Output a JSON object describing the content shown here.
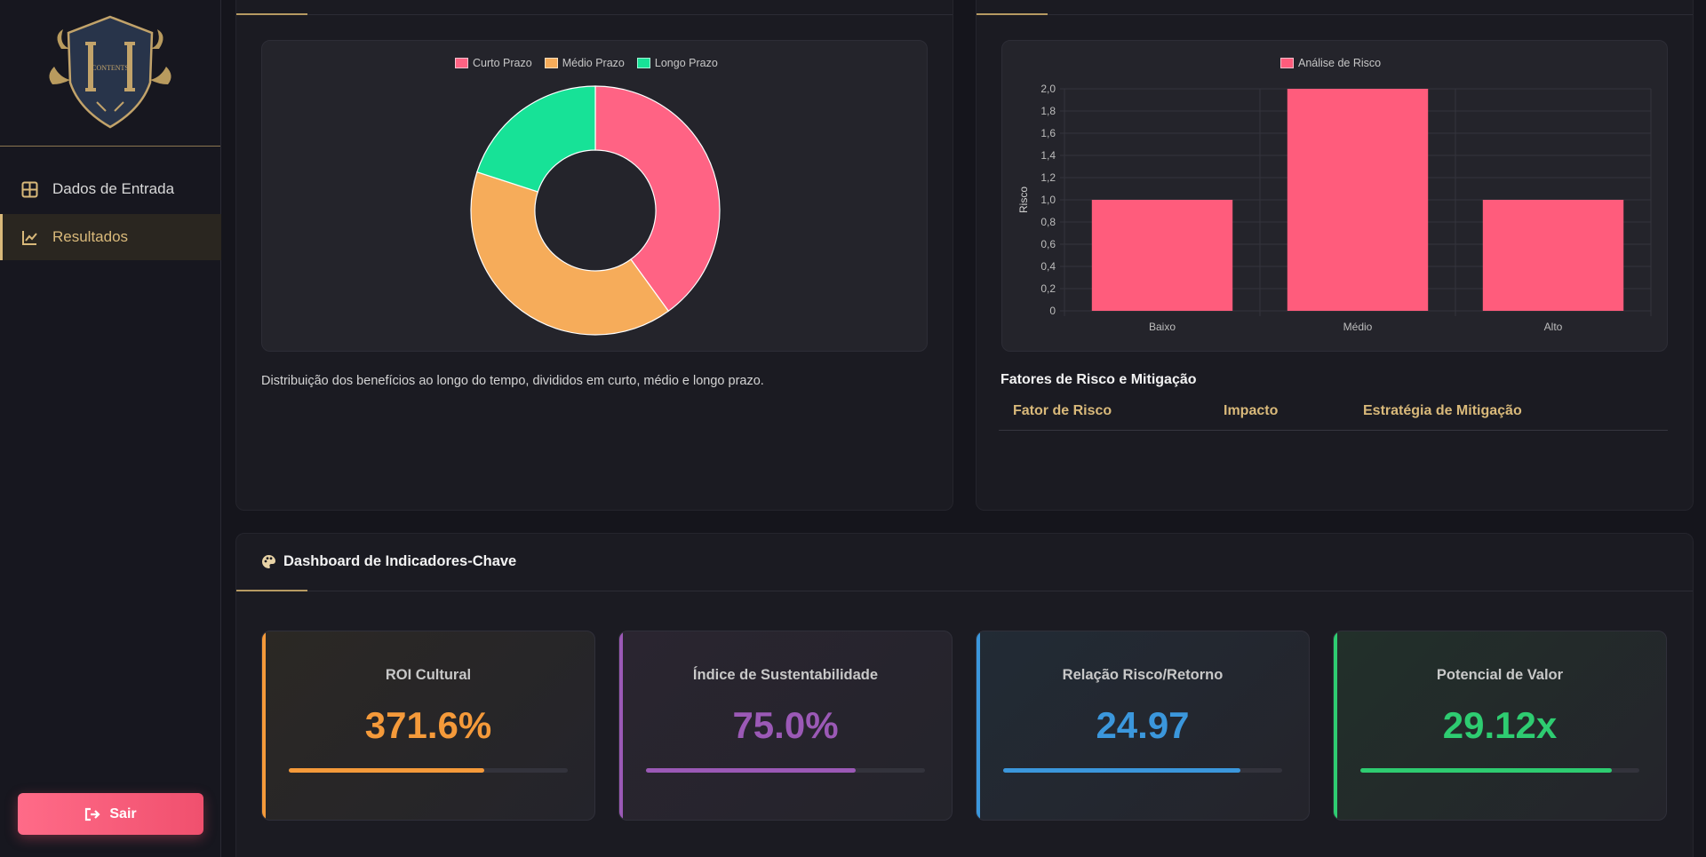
{
  "sidebar": {
    "logo_text": "CONTENTS",
    "items": [
      {
        "label": "Dados de Entrada",
        "active": false,
        "icon": "table-icon"
      },
      {
        "label": "Resultados",
        "active": true,
        "icon": "line-chart-icon"
      }
    ],
    "logout_label": "Sair"
  },
  "benefits_panel": {
    "caption": "Distribuição dos benefícios ao longo do tempo, divididos em curto, médio e longo prazo."
  },
  "risk_panel": {
    "table_title": "Fatores de Risco e Mitigação",
    "columns": [
      "Fator de Risco",
      "Impacto",
      "Estratégia de Mitigação"
    ]
  },
  "dashboard": {
    "title": "Dashboard de Indicadores-Chave",
    "kpis": [
      {
        "label": "ROI Cultural",
        "value": "371.6%",
        "progress": 0.7,
        "color": "#f59a3a"
      },
      {
        "label": "Índice de Sustentabilidade",
        "value": "75.0%",
        "progress": 0.75,
        "color": "#9b59b6"
      },
      {
        "label": "Relação Risco/Retorno",
        "value": "24.97",
        "progress": 0.85,
        "color": "#3b97dc"
      },
      {
        "label": "Potencial de Valor",
        "value": "29.12x",
        "progress": 0.9,
        "color": "#2ecc71"
      }
    ]
  },
  "chart_data": [
    {
      "type": "pie",
      "variant": "doughnut",
      "categories": [
        "Curto Prazo",
        "Médio Prazo",
        "Longo Prazo"
      ],
      "values": [
        40,
        40,
        20
      ],
      "colors": [
        "#ff6384",
        "#f6ac5a",
        "#17e297"
      ],
      "legend": "top"
    },
    {
      "type": "bar",
      "categories": [
        "Baixo",
        "Médio",
        "Alto"
      ],
      "series": [
        {
          "name": "Análise de Risco",
          "values": [
            1,
            2,
            1
          ],
          "color": "#ff5c7c"
        }
      ],
      "ylabel": "Risco",
      "ylim": [
        0,
        2
      ],
      "yticks": [
        "0",
        "0,2",
        "0,4",
        "0,6",
        "0,8",
        "1,0",
        "1,2",
        "1,4",
        "1,6",
        "1,8",
        "2,0"
      ],
      "grid": true,
      "legend": "top"
    }
  ]
}
